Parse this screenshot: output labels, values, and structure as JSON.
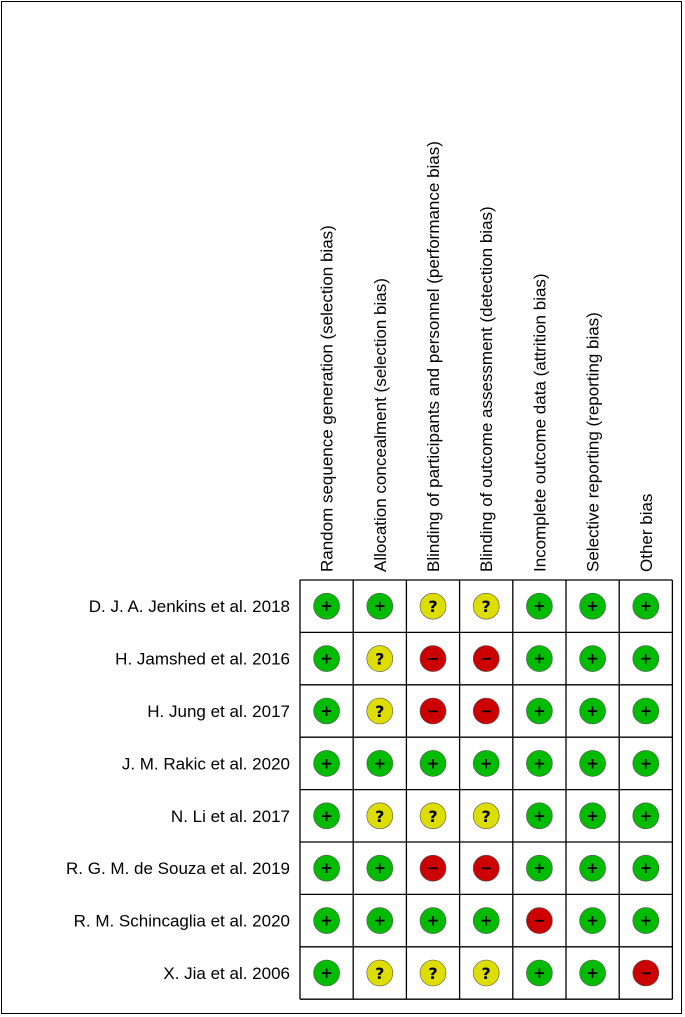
{
  "chart_data": {
    "type": "table",
    "domains": [
      "Random sequence generation (selection bias)",
      "Allocation concealment (selection bias)",
      "Blinding of participants and personnel (performance bias)",
      "Blinding of outcome assessment (detection bias)",
      "Incomplete outcome data (attrition bias)",
      "Selective reporting (reporting bias)",
      "Other bias"
    ],
    "studies": [
      "D. J. A. Jenkins et al. 2018",
      "H. Jamshed et al. 2016",
      "H. Jung et al. 2017",
      "J. M. Rakic et al. 2020",
      "N. Li et al. 2017",
      "R. G. M. de Souza et al. 2019",
      "R. M. Schincaglia et al. 2020",
      "X. Jia et al. 2006"
    ],
    "judgements": [
      [
        "low",
        "low",
        "unclear",
        "unclear",
        "low",
        "low",
        "low"
      ],
      [
        "low",
        "unclear",
        "high",
        "high",
        "low",
        "low",
        "low"
      ],
      [
        "low",
        "unclear",
        "high",
        "high",
        "low",
        "low",
        "low"
      ],
      [
        "low",
        "low",
        "low",
        "low",
        "low",
        "low",
        "low"
      ],
      [
        "low",
        "unclear",
        "unclear",
        "unclear",
        "low",
        "low",
        "low"
      ],
      [
        "low",
        "low",
        "high",
        "high",
        "low",
        "low",
        "low"
      ],
      [
        "low",
        "low",
        "low",
        "low",
        "high",
        "low",
        "low"
      ],
      [
        "low",
        "unclear",
        "unclear",
        "unclear",
        "low",
        "low",
        "high"
      ]
    ],
    "legend": {
      "low": {
        "symbol": "+",
        "color": "#00bb00"
      },
      "unclear": {
        "symbol": "?",
        "color": "#dddd00"
      },
      "high": {
        "symbol": "−",
        "color": "#cc0000"
      }
    }
  }
}
